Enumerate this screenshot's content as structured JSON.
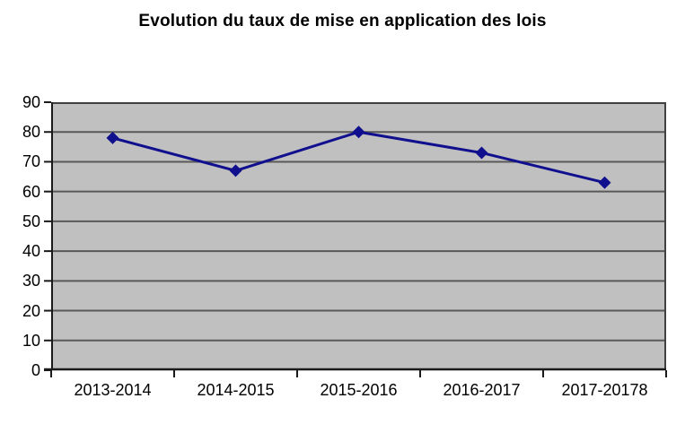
{
  "chart_data": {
    "type": "line",
    "title": "Evolution du taux de mise en application des lois",
    "categories": [
      "2013-2014",
      "2014-2015",
      "2015-2016",
      "2016-2017",
      "2017-20178"
    ],
    "values": [
      78,
      67,
      80,
      73,
      63
    ],
    "xlabel": "",
    "ylabel": "",
    "ylim": [
      0,
      90
    ],
    "ytick_step": 10,
    "y_tick_labels": [
      "0",
      "10",
      "20",
      "30",
      "40",
      "50",
      "60",
      "70",
      "80",
      "90"
    ],
    "grid": true,
    "legend": false,
    "marker_shape": "diamond",
    "colors": {
      "series_line": "#10108e",
      "marker": "#10108e",
      "plot_background": "#c0c0c0",
      "gridline": "#595959",
      "plot_border": "#404040",
      "axis": "#1a1a1a",
      "page_background": "#ffffff",
      "text": "#000000"
    }
  }
}
